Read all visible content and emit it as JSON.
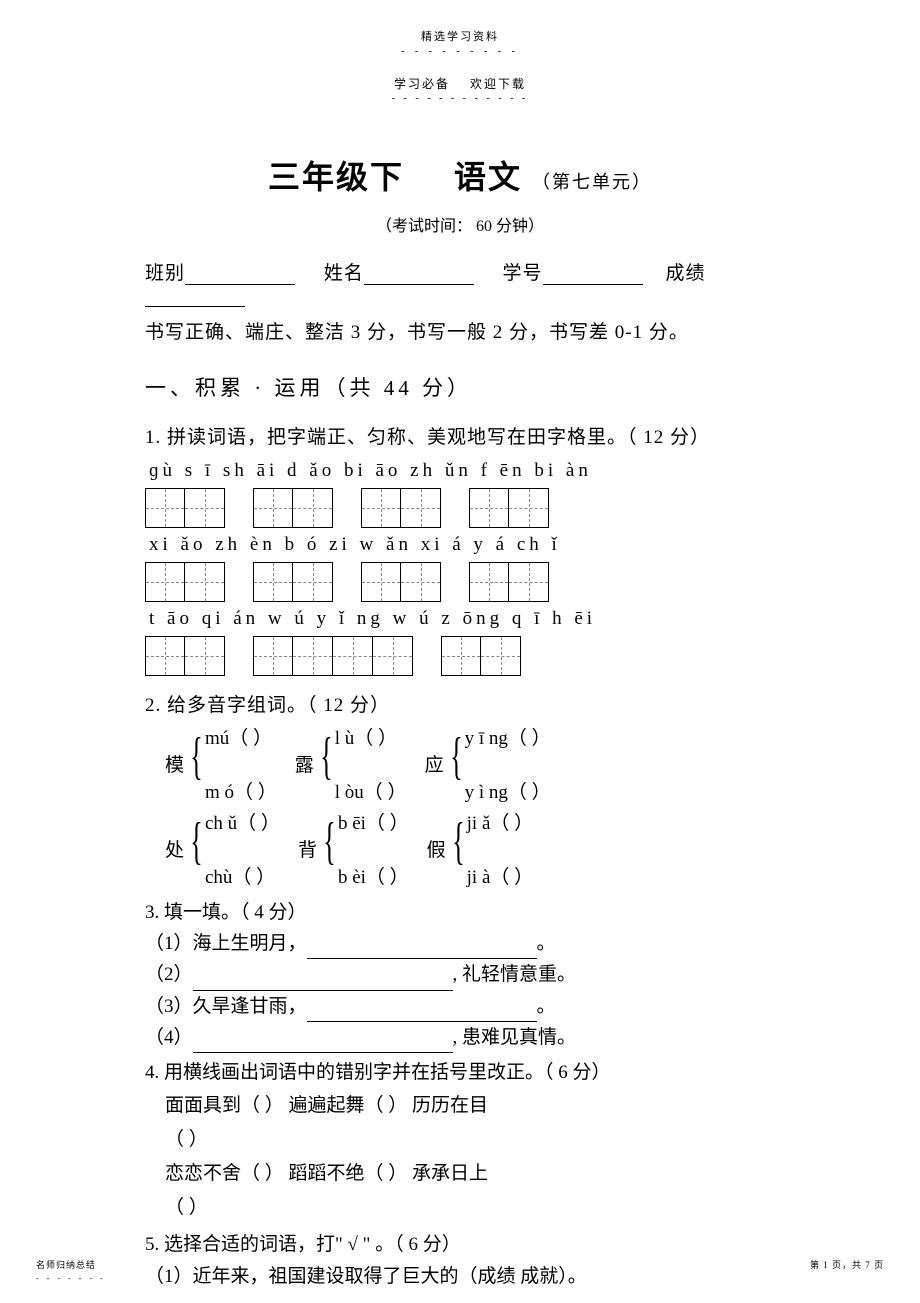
{
  "header": {
    "top": "精选学习资料",
    "dots": "- - - - - - - - -",
    "sub_left": "学习必备",
    "sub_right": "欢迎下载",
    "sub_line": "- - - - - - - - - - - -"
  },
  "title": {
    "main_left": "三年级下",
    "main_right": "语文",
    "unit": "（第七单元）"
  },
  "exam_time": "（考试时间：  60 分钟）",
  "info": {
    "class": "班别",
    "name": "姓名",
    "sid": "学号",
    "score": "成绩"
  },
  "scoring": "书写正确、端庄、整洁  3 分，书写一般  2 分，书写差  0-1 分。",
  "section1": "一、积累  ·   运用（共  44 分）",
  "q1": {
    "text": "1. 拼读词语，把字端正、匀称、美观地写在田字格里。（    12 分）",
    "row1_pinyin": "ɡù s ī    sh  āi d  ǎo    bi  āo zh  ǔn    f  ēn bi  àn",
    "row2_pinyin": "xi ǎo zh  èn    b  ó zi    w    ǎn xi  á    y   á ch  ǐ",
    "row3_pinyin": "t āo qi  án    w  ú y ǐ ng w ú  z  ōng    q   ī  h ēi",
    "groups_r1": [
      2,
      2,
      2,
      2
    ],
    "groups_r2": [
      2,
      2,
      2,
      2
    ],
    "groups_r3": [
      2,
      4,
      2
    ]
  },
  "q2": {
    "text": "2. 给多音字组词。（ 12 分）",
    "pairs": [
      {
        "char": "模",
        "a": "mú（        ）",
        "b": "m  ó（       ）"
      },
      {
        "char": "露",
        "a": "l   ù（        ）",
        "b": "l   òu（       ）"
      },
      {
        "char": "应",
        "a": "y   ī ng（      ）",
        "b": "y   ì ng（      ）"
      },
      {
        "char": "处",
        "a": "ch  ǔ（        ）",
        "b": "chù（        ）"
      },
      {
        "char": "背",
        "a": "b  ēi（        ）",
        "b": "b  èi（        ）"
      },
      {
        "char": "假",
        "a": "ji    ǎ（       ）",
        "b": "ji    à（       ）"
      }
    ]
  },
  "q3": {
    "text": "3. 填一填。（ 4 分）",
    "lines": [
      "（1）海上生明月，",
      "（2）",
      "（3）久旱逢甘雨，",
      "（4）"
    ],
    "tails": [
      "。",
      ", 礼轻情意重。",
      "。",
      ", 患难见真情。"
    ]
  },
  "q4": {
    "text": "4. 用横线画出词语中的错别字并在括号里改正。（   6 分）",
    "row1": "面面具到（          ）  遍遍起舞（          ）  历历在目",
    "row1b": "（          ）",
    "row2": "恋恋不舍（          ）  蹈蹈不绝（          ）  承承日上",
    "row2b": "（          ）"
  },
  "q5": {
    "text": "5. 选择合适的词语，打\" √ \" 。（  6 分）",
    "line1": "（1）近年来，祖国建设取得了巨大的（成绩    成就）。"
  },
  "footer": {
    "left": "名师归纳总结",
    "dots": "- - - - - - -",
    "right": "第 1 页，共 7 页"
  }
}
